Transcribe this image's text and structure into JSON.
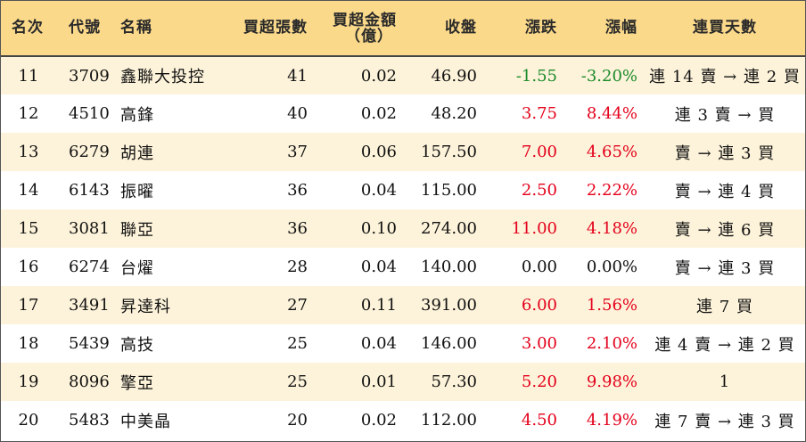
{
  "headers": {
    "rank": "名次",
    "code": "代號",
    "name": "名稱",
    "net_buy_lots": "買超張數",
    "net_buy_amount_line1": "買超金額",
    "net_buy_amount_line2": "（億）",
    "close": "收盤",
    "change": "漲跌",
    "change_pct": "漲幅",
    "streak": "連買天數"
  },
  "colors": {
    "header_bg": "#fbd98a",
    "row_alt_bg": "#fdf3da",
    "up": "#e3001b",
    "down": "#1a8a2a"
  },
  "rows": [
    {
      "rank": "11",
      "code": "3709",
      "name": "鑫聯大投控",
      "lots": "41",
      "amount": "0.02",
      "close": "46.90",
      "change": "-1.55",
      "pct": "-3.20%",
      "dir": "down",
      "streak": "連 14 賣 → 連 2 買"
    },
    {
      "rank": "12",
      "code": "4510",
      "name": "高鋒",
      "lots": "40",
      "amount": "0.02",
      "close": "48.20",
      "change": "3.75",
      "pct": "8.44%",
      "dir": "up",
      "streak": "連 3 賣 → 買"
    },
    {
      "rank": "13",
      "code": "6279",
      "name": "胡連",
      "lots": "37",
      "amount": "0.06",
      "close": "157.50",
      "change": "7.00",
      "pct": "4.65%",
      "dir": "up",
      "streak": "賣 → 連 3 買"
    },
    {
      "rank": "14",
      "code": "6143",
      "name": "振曜",
      "lots": "36",
      "amount": "0.04",
      "close": "115.00",
      "change": "2.50",
      "pct": "2.22%",
      "dir": "up",
      "streak": "賣 → 連 4 買"
    },
    {
      "rank": "15",
      "code": "3081",
      "name": "聯亞",
      "lots": "36",
      "amount": "0.10",
      "close": "274.00",
      "change": "11.00",
      "pct": "4.18%",
      "dir": "up",
      "streak": "賣 → 連 6 買"
    },
    {
      "rank": "16",
      "code": "6274",
      "name": "台燿",
      "lots": "28",
      "amount": "0.04",
      "close": "140.00",
      "change": "0.00",
      "pct": "0.00%",
      "dir": "flat",
      "streak": "賣 → 連 3 買"
    },
    {
      "rank": "17",
      "code": "3491",
      "name": "昇達科",
      "lots": "27",
      "amount": "0.11",
      "close": "391.00",
      "change": "6.00",
      "pct": "1.56%",
      "dir": "up",
      "streak": "連 7 買"
    },
    {
      "rank": "18",
      "code": "5439",
      "name": "高技",
      "lots": "25",
      "amount": "0.04",
      "close": "146.00",
      "change": "3.00",
      "pct": "2.10%",
      "dir": "up",
      "streak": "連 4 賣 → 連 2 買"
    },
    {
      "rank": "19",
      "code": "8096",
      "name": "擎亞",
      "lots": "25",
      "amount": "0.01",
      "close": "57.30",
      "change": "5.20",
      "pct": "9.98%",
      "dir": "up",
      "streak": "1"
    },
    {
      "rank": "20",
      "code": "5483",
      "name": "中美晶",
      "lots": "20",
      "amount": "0.02",
      "close": "112.00",
      "change": "4.50",
      "pct": "4.19%",
      "dir": "up",
      "streak": "連 7 賣 → 連 3 買"
    }
  ]
}
